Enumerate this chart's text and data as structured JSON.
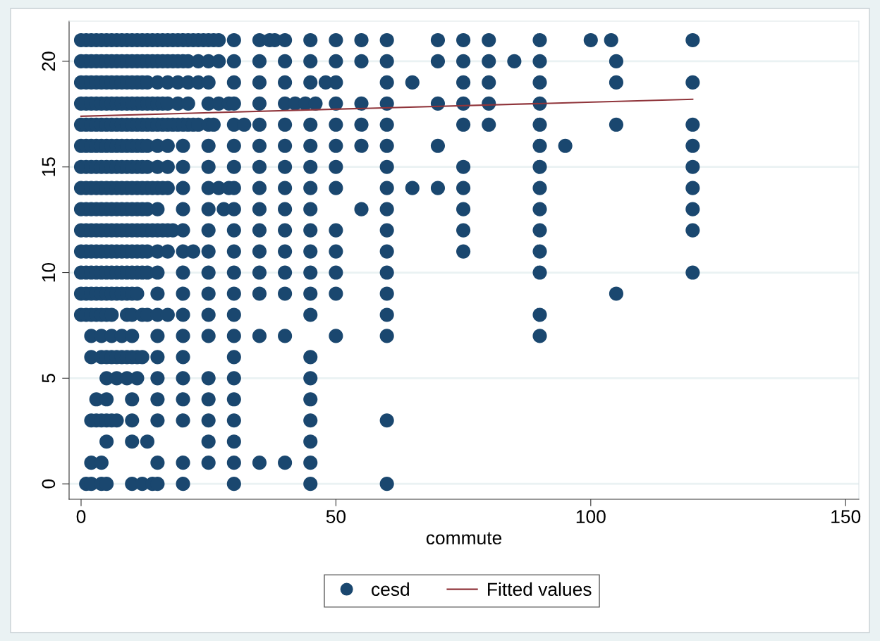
{
  "chart_data": {
    "type": "scatter",
    "xlabel": "commute",
    "xlim": [
      -2.35,
      152.6
    ],
    "ylim": [
      -0.73,
      21.9
    ],
    "xticks": [
      0,
      50,
      100,
      150
    ],
    "yticks": [
      0,
      5,
      10,
      15,
      20
    ],
    "grid": "y",
    "legend": "bottom",
    "marker": "circle",
    "series": [
      {
        "name": "cesd",
        "color": "#1a476f",
        "x": [
          0,
          1,
          2,
          3,
          4,
          5,
          6,
          7,
          8,
          9,
          10,
          11,
          12,
          13,
          14,
          15,
          16,
          17,
          18,
          19,
          20,
          21,
          22,
          23,
          24,
          25,
          26,
          27,
          30,
          35,
          37,
          38,
          40,
          45,
          50,
          55,
          60,
          70,
          75,
          80,
          90,
          100,
          104,
          120,
          0,
          1,
          2,
          3,
          4,
          5,
          6,
          7,
          8,
          9,
          10,
          11,
          12,
          13,
          14,
          15,
          16,
          17,
          18,
          19,
          20,
          21,
          23,
          25,
          27,
          30,
          35,
          40,
          45,
          50,
          55,
          60,
          70,
          75,
          80,
          85,
          90,
          105,
          0,
          1,
          2,
          3,
          4,
          5,
          6,
          7,
          8,
          9,
          10,
          11,
          12,
          13,
          15,
          17,
          19,
          21,
          23,
          25,
          30,
          35,
          40,
          45,
          48,
          50,
          60,
          65,
          75,
          80,
          90,
          105,
          120,
          0,
          1,
          2,
          3,
          4,
          5,
          6,
          7,
          8,
          9,
          10,
          11,
          12,
          13,
          14,
          15,
          16,
          17,
          19,
          21,
          25,
          27,
          29,
          30,
          35,
          40,
          42,
          44,
          46,
          50,
          55,
          60,
          70,
          75,
          80,
          90,
          0,
          1,
          2,
          3,
          4,
          5,
          6,
          7,
          8,
          9,
          10,
          11,
          12,
          13,
          14,
          15,
          16,
          17,
          18,
          19,
          20,
          21,
          22,
          23,
          25,
          26,
          30,
          32,
          35,
          40,
          45,
          50,
          55,
          60,
          75,
          80,
          90,
          105,
          120,
          0,
          1,
          2,
          3,
          4,
          5,
          6,
          7,
          8,
          9,
          10,
          11,
          12,
          13,
          15,
          17,
          20,
          25,
          30,
          35,
          40,
          45,
          50,
          55,
          60,
          70,
          90,
          95,
          120,
          0,
          1,
          2,
          3,
          4,
          5,
          6,
          7,
          8,
          9,
          10,
          11,
          12,
          13,
          15,
          17,
          20,
          25,
          30,
          35,
          40,
          45,
          50,
          60,
          75,
          90,
          120,
          0,
          1,
          2,
          3,
          4,
          5,
          6,
          7,
          8,
          9,
          10,
          11,
          12,
          13,
          14,
          15,
          16,
          17,
          20,
          25,
          27,
          29,
          30,
          35,
          40,
          45,
          50,
          60,
          65,
          70,
          75,
          90,
          120,
          0,
          1,
          2,
          3,
          4,
          5,
          6,
          7,
          8,
          9,
          10,
          11,
          12,
          13,
          15,
          20,
          25,
          28,
          30,
          35,
          40,
          45,
          55,
          60,
          75,
          90,
          120,
          0,
          1,
          2,
          3,
          4,
          5,
          6,
          7,
          8,
          9,
          10,
          11,
          12,
          13,
          14,
          15,
          16,
          17,
          18,
          20,
          25,
          30,
          35,
          40,
          45,
          50,
          60,
          75,
          90,
          120,
          0,
          1,
          2,
          3,
          4,
          5,
          6,
          7,
          8,
          9,
          10,
          11,
          12,
          13,
          15,
          17,
          20,
          22,
          25,
          30,
          35,
          40,
          45,
          50,
          60,
          75,
          90,
          0,
          1,
          2,
          3,
          4,
          5,
          6,
          7,
          8,
          9,
          10,
          11,
          12,
          13,
          15,
          20,
          25,
          30,
          35,
          40,
          45,
          50,
          60,
          90,
          120,
          0,
          1,
          2,
          3,
          4,
          5,
          6,
          7,
          8,
          9,
          10,
          11,
          15,
          20,
          25,
          30,
          35,
          40,
          45,
          50,
          60,
          105,
          0,
          1,
          2,
          3,
          4,
          5,
          6,
          9,
          10,
          12,
          13,
          15,
          17,
          20,
          25,
          30,
          45,
          60,
          90,
          2,
          4,
          6,
          8,
          10,
          15,
          20,
          25,
          30,
          35,
          40,
          50,
          60,
          90,
          2,
          4,
          5,
          6,
          7,
          8,
          9,
          10,
          11,
          12,
          15,
          20,
          30,
          45,
          5,
          7,
          9,
          11,
          15,
          20,
          25,
          30,
          45,
          3,
          5,
          10,
          15,
          20,
          25,
          30,
          45,
          2,
          3,
          4,
          5,
          6,
          7,
          10,
          15,
          20,
          25,
          30,
          45,
          60,
          5,
          10,
          13,
          25,
          30,
          45,
          2,
          4,
          15,
          20,
          25,
          30,
          35,
          40,
          45,
          1,
          2,
          4,
          5,
          10,
          12,
          14,
          15,
          20,
          30,
          45,
          60
        ],
        "values": [
          21,
          21,
          21,
          21,
          21,
          21,
          21,
          21,
          21,
          21,
          21,
          21,
          21,
          21,
          21,
          21,
          21,
          21,
          21,
          21,
          21,
          21,
          21,
          21,
          21,
          21,
          21,
          21,
          21,
          21,
          21,
          21,
          21,
          21,
          21,
          21,
          21,
          21,
          21,
          21,
          21,
          21,
          21,
          21,
          20,
          20,
          20,
          20,
          20,
          20,
          20,
          20,
          20,
          20,
          20,
          20,
          20,
          20,
          20,
          20,
          20,
          20,
          20,
          20,
          20,
          20,
          20,
          20,
          20,
          20,
          20,
          20,
          20,
          20,
          20,
          20,
          20,
          20,
          20,
          20,
          20,
          20,
          19,
          19,
          19,
          19,
          19,
          19,
          19,
          19,
          19,
          19,
          19,
          19,
          19,
          19,
          19,
          19,
          19,
          19,
          19,
          19,
          19,
          19,
          19,
          19,
          19,
          19,
          19,
          19,
          19,
          19,
          19,
          19,
          19,
          18,
          18,
          18,
          18,
          18,
          18,
          18,
          18,
          18,
          18,
          18,
          18,
          18,
          18,
          18,
          18,
          18,
          18,
          18,
          18,
          18,
          18,
          18,
          18,
          18,
          18,
          18,
          18,
          18,
          18,
          18,
          18,
          18,
          18,
          18,
          18,
          17,
          17,
          17,
          17,
          17,
          17,
          17,
          17,
          17,
          17,
          17,
          17,
          17,
          17,
          17,
          17,
          17,
          17,
          17,
          17,
          17,
          17,
          17,
          17,
          17,
          17,
          17,
          17,
          17,
          17,
          17,
          17,
          17,
          17,
          17,
          17,
          17,
          17,
          17,
          16,
          16,
          16,
          16,
          16,
          16,
          16,
          16,
          16,
          16,
          16,
          16,
          16,
          16,
          16,
          16,
          16,
          16,
          16,
          16,
          16,
          16,
          16,
          16,
          16,
          16,
          16,
          16,
          16,
          15,
          15,
          15,
          15,
          15,
          15,
          15,
          15,
          15,
          15,
          15,
          15,
          15,
          15,
          15,
          15,
          15,
          15,
          15,
          15,
          15,
          15,
          15,
          15,
          15,
          15,
          15,
          14,
          14,
          14,
          14,
          14,
          14,
          14,
          14,
          14,
          14,
          14,
          14,
          14,
          14,
          14,
          14,
          14,
          14,
          14,
          14,
          14,
          14,
          14,
          14,
          14,
          14,
          14,
          14,
          14,
          14,
          14,
          14,
          14,
          13,
          13,
          13,
          13,
          13,
          13,
          13,
          13,
          13,
          13,
          13,
          13,
          13,
          13,
          13,
          13,
          13,
          13,
          13,
          13,
          13,
          13,
          13,
          13,
          13,
          13,
          13,
          12,
          12,
          12,
          12,
          12,
          12,
          12,
          12,
          12,
          12,
          12,
          12,
          12,
          12,
          12,
          12,
          12,
          12,
          12,
          12,
          12,
          12,
          12,
          12,
          12,
          12,
          12,
          12,
          12,
          12,
          11,
          11,
          11,
          11,
          11,
          11,
          11,
          11,
          11,
          11,
          11,
          11,
          11,
          11,
          11,
          11,
          11,
          11,
          11,
          11,
          11,
          11,
          11,
          11,
          11,
          11,
          11,
          10,
          10,
          10,
          10,
          10,
          10,
          10,
          10,
          10,
          10,
          10,
          10,
          10,
          10,
          10,
          10,
          10,
          10,
          10,
          10,
          10,
          10,
          10,
          10,
          10,
          9,
          9,
          9,
          9,
          9,
          9,
          9,
          9,
          9,
          9,
          9,
          9,
          9,
          9,
          9,
          9,
          9,
          9,
          9,
          9,
          9,
          9,
          8,
          8,
          8,
          8,
          8,
          8,
          8,
          8,
          8,
          8,
          8,
          8,
          8,
          8,
          8,
          8,
          8,
          8,
          8,
          7,
          7,
          7,
          7,
          7,
          7,
          7,
          7,
          7,
          7,
          7,
          7,
          7,
          7,
          6,
          6,
          6,
          6,
          6,
          6,
          6,
          6,
          6,
          6,
          6,
          6,
          6,
          6,
          5,
          5,
          5,
          5,
          5,
          5,
          5,
          5,
          5,
          4,
          4,
          4,
          4,
          4,
          4,
          4,
          4,
          3,
          3,
          3,
          3,
          3,
          3,
          3,
          3,
          3,
          3,
          3,
          3,
          3,
          2,
          2,
          2,
          2,
          2,
          2,
          1,
          1,
          1,
          1,
          1,
          1,
          1,
          1,
          1,
          0,
          0,
          0,
          0,
          0,
          0,
          0,
          0,
          0,
          0,
          0,
          0
        ]
      },
      {
        "name": "Fitted values",
        "type": "line",
        "color": "#90353b",
        "marker": "none",
        "line_style": "solid",
        "x": [
          0,
          120
        ],
        "values": [
          17.4,
          18.2
        ]
      }
    ]
  }
}
